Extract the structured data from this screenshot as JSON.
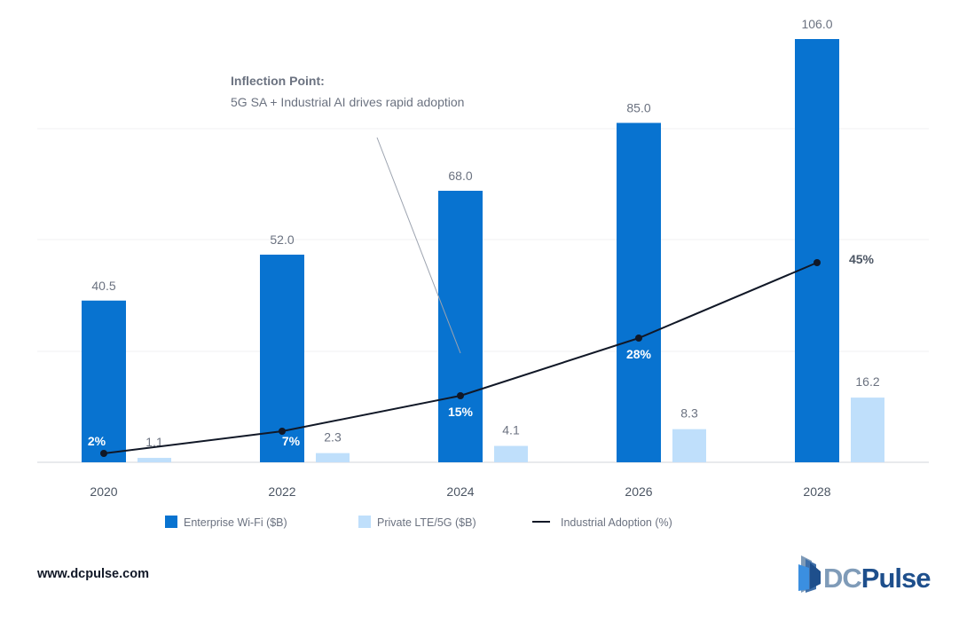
{
  "chart_data": {
    "type": "bar",
    "categories": [
      "2020",
      "2022",
      "2024",
      "2026",
      "2028"
    ],
    "series": [
      {
        "name": "Enterprise Wi-Fi ($B)",
        "type": "bar",
        "values": [
          40.5,
          52.0,
          68.0,
          85.0,
          106.0
        ],
        "labels": [
          "40.5",
          "52.0",
          "68.0",
          "85.0",
          "106.0"
        ],
        "color": "#0873d0"
      },
      {
        "name": "Private LTE/5G ($B)",
        "type": "bar",
        "values": [
          1.1,
          2.3,
          4.1,
          8.3,
          16.2
        ],
        "labels": [
          "1.1",
          "2.3",
          "4.1",
          "8.3",
          "16.2"
        ],
        "color": "#bfdffb"
      },
      {
        "name": "Industrial Adoption (%)",
        "type": "line",
        "axis": "secondary",
        "values": [
          2,
          7,
          15,
          28,
          45
        ],
        "labels": [
          "2%",
          "7%",
          "15%",
          "28%",
          "45%"
        ],
        "color": "#111827"
      }
    ],
    "grid": true,
    "legend": "bottom",
    "annotation": {
      "title": "Inflection Point:",
      "text": "5G SA + Industrial AI drives rapid adoption",
      "points_to": "2024"
    }
  },
  "footer": {
    "url": "www.dcpulse.com",
    "logo": "DCPulse",
    "logo_parts": [
      "DC",
      "Pulse"
    ]
  },
  "colors": {
    "wifi": "#0873d0",
    "lte": "#bfdffb",
    "line": "#111827",
    "text": "#6b7280",
    "logo_dark": "#1e4f8c",
    "logo_light": "#7f9bb8"
  }
}
